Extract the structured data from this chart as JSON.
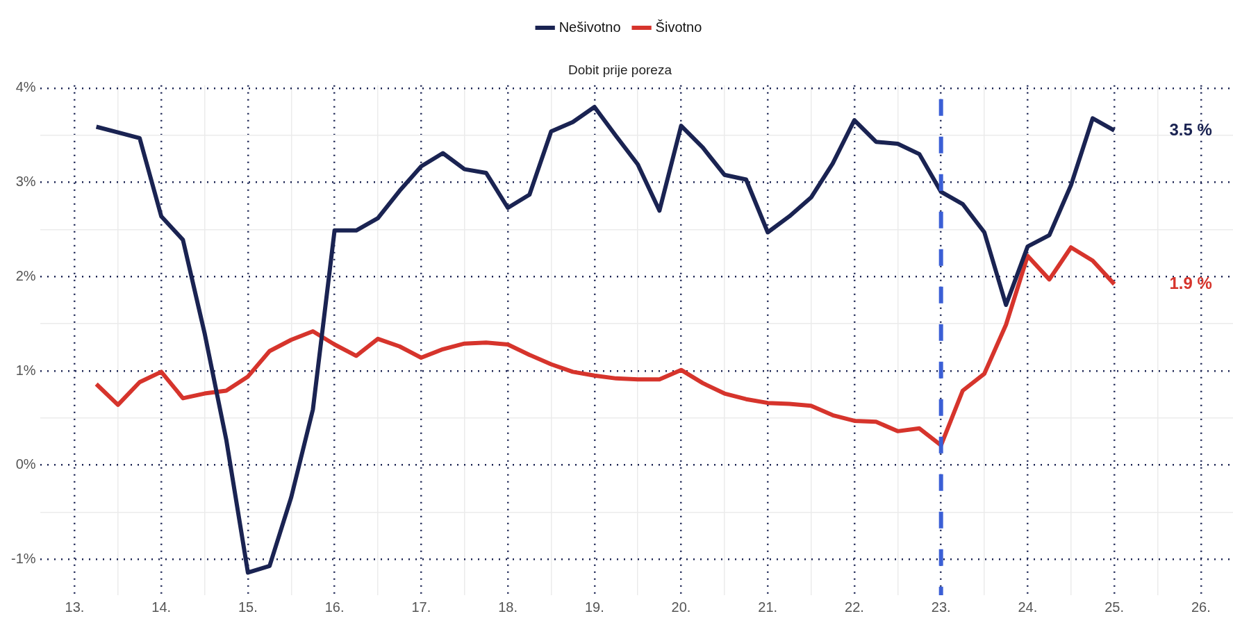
{
  "chart_data": {
    "type": "line",
    "title": "Dobit prije poreza",
    "legend": "top",
    "grid": true,
    "line_style": "solid",
    "marker": "none",
    "x": [
      13.25,
      13.5,
      13.75,
      14,
      14.25,
      14.5,
      14.75,
      15,
      15.25,
      15.5,
      15.75,
      16,
      16.25,
      16.5,
      16.75,
      17,
      17.25,
      17.5,
      17.75,
      18,
      18.25,
      18.5,
      18.75,
      19,
      19.25,
      19.5,
      19.75,
      20,
      20.25,
      20.5,
      20.75,
      21,
      21.25,
      21.5,
      21.75,
      22,
      22.25,
      22.5,
      22.75,
      23,
      23.25,
      23.5,
      23.75,
      24,
      24.25,
      24.5,
      24.75,
      25
    ],
    "series": [
      {
        "name": "Nešivotno",
        "color": "#1a2352",
        "values": [
          3.59,
          3.53,
          3.47,
          2.64,
          2.39,
          1.4,
          0.27,
          -1.14,
          -1.07,
          -0.34,
          0.59,
          2.49,
          2.49,
          2.62,
          2.91,
          3.17,
          3.31,
          3.14,
          3.1,
          2.73,
          2.87,
          3.54,
          3.64,
          3.8,
          3.49,
          3.19,
          2.7,
          3.6,
          3.37,
          3.08,
          3.03,
          2.47,
          2.64,
          2.84,
          3.2,
          3.66,
          3.43,
          3.41,
          3.3,
          2.9,
          2.77,
          2.47,
          1.7,
          2.32,
          2.44,
          2.97,
          3.68,
          3.55
        ]
      },
      {
        "name": "Šivotno",
        "color": "#d6342c",
        "values": [
          0.86,
          0.64,
          0.88,
          0.99,
          0.71,
          0.76,
          0.79,
          0.94,
          1.21,
          1.33,
          1.42,
          1.28,
          1.16,
          1.34,
          1.26,
          1.14,
          1.23,
          1.29,
          1.3,
          1.28,
          1.17,
          1.07,
          0.99,
          0.95,
          0.92,
          0.91,
          0.91,
          1.01,
          0.87,
          0.76,
          0.7,
          0.66,
          0.65,
          0.63,
          0.53,
          0.47,
          0.46,
          0.36,
          0.39,
          0.21,
          0.79,
          0.97,
          1.49,
          2.22,
          1.97,
          2.31,
          2.17,
          1.92
        ]
      }
    ],
    "xlim": [
      12.6,
      26.37
    ],
    "xticks": [
      {
        "value": 13,
        "label": "13."
      },
      {
        "value": 13.5,
        "label": null
      },
      {
        "value": 14,
        "label": "14."
      },
      {
        "value": 14.5,
        "label": null
      },
      {
        "value": 15,
        "label": "15."
      },
      {
        "value": 15.5,
        "label": null
      },
      {
        "value": 16,
        "label": "16."
      },
      {
        "value": 16.5,
        "label": null
      },
      {
        "value": 17,
        "label": "17."
      },
      {
        "value": 17.5,
        "label": null
      },
      {
        "value": 18,
        "label": "18."
      },
      {
        "value": 18.5,
        "label": null
      },
      {
        "value": 19,
        "label": "19."
      },
      {
        "value": 19.5,
        "label": null
      },
      {
        "value": 20,
        "label": "20."
      },
      {
        "value": 20.5,
        "label": null
      },
      {
        "value": 21,
        "label": "21."
      },
      {
        "value": 21.5,
        "label": null
      },
      {
        "value": 22,
        "label": "22."
      },
      {
        "value": 22.5,
        "label": null
      },
      {
        "value": 23,
        "label": "23."
      },
      {
        "value": 23.5,
        "label": null
      },
      {
        "value": 24,
        "label": "24."
      },
      {
        "value": 24.5,
        "label": null
      },
      {
        "value": 25,
        "label": "25."
      },
      {
        "value": 25.5,
        "label": null
      },
      {
        "value": 26,
        "label": "26."
      }
    ],
    "ylim": [
      -1.38,
      4.03
    ],
    "yticks": [
      {
        "value": -1,
        "label": "-1%"
      },
      {
        "value": -0.5,
        "label": null
      },
      {
        "value": 0,
        "label": "0%"
      },
      {
        "value": 0.5,
        "label": null
      },
      {
        "value": 1,
        "label": "1%"
      },
      {
        "value": 1.5,
        "label": null
      },
      {
        "value": 2,
        "label": "2%"
      },
      {
        "value": 2.5,
        "label": null
      },
      {
        "value": 3,
        "label": "3%"
      },
      {
        "value": 3.5,
        "label": null
      },
      {
        "value": 4,
        "label": "4%"
      }
    ],
    "ref_lines": [
      {
        "axis": "x",
        "value": 23,
        "color": "#3b5fd6",
        "line_style": "dashed"
      }
    ],
    "annotations": [
      "3.5 %",
      "1.9 %"
    ]
  }
}
